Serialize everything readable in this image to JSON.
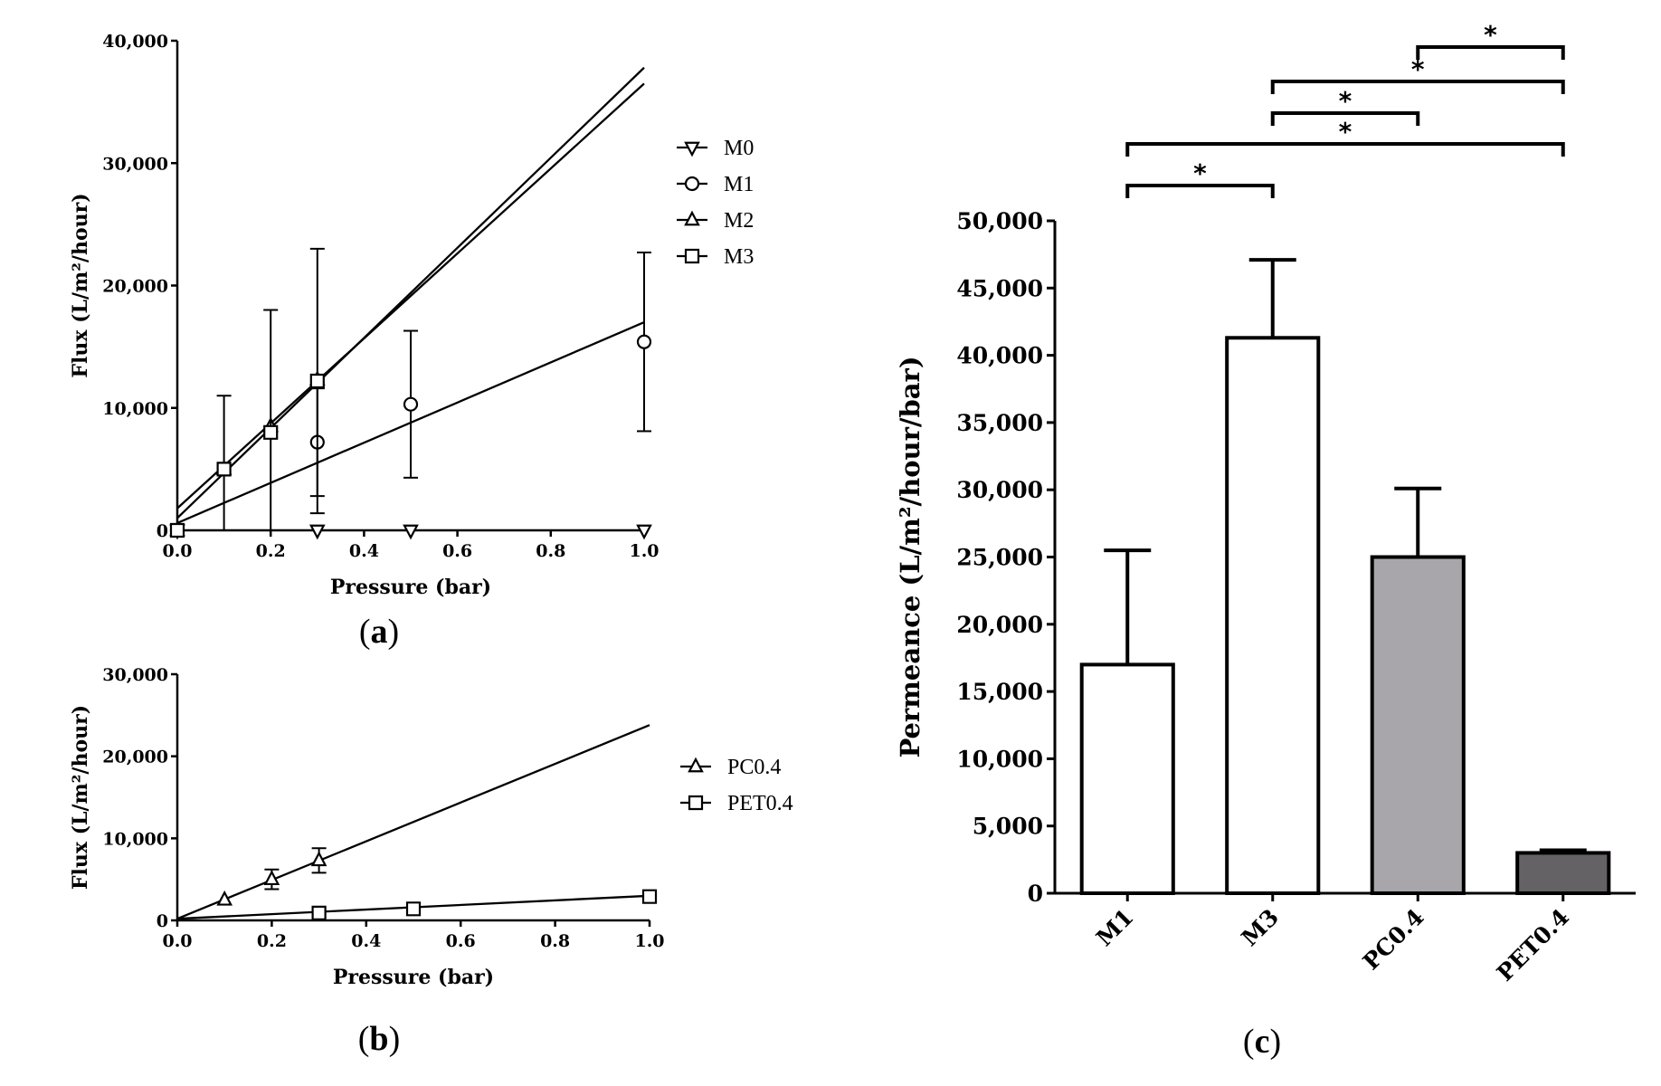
{
  "chart_data": [
    {
      "type": "scatter",
      "panel": "a",
      "panel_label": "a",
      "xlabel": "Pressure (bar)",
      "ylabel": "Flux (L/m²/hour)",
      "xlim": [
        0,
        1.0
      ],
      "ylim": [
        0,
        40000
      ],
      "xticks": [
        "0.0",
        "0.2",
        "0.4",
        "0.6",
        "0.8",
        "1.0"
      ],
      "yticks": [
        "0",
        "10,000",
        "20,000",
        "30,000",
        "40,000"
      ],
      "legend": "right",
      "series": [
        {
          "name": "M0",
          "marker": "triangle-down",
          "x": [
            0,
            0.3,
            0.5,
            1.0
          ],
          "y": [
            0,
            0,
            0,
            0
          ],
          "err": [
            0,
            0,
            0,
            0
          ],
          "fit": [
            0,
            0
          ]
        },
        {
          "name": "M1",
          "marker": "circle",
          "x": [
            0,
            0.3,
            0.5,
            1.0
          ],
          "y": [
            0,
            7200,
            10300,
            15400
          ],
          "err": [
            0,
            4400,
            6000,
            7300
          ],
          "fit": [
            600,
            17000
          ]
        },
        {
          "name": "M2",
          "marker": "triangle-up",
          "x": [
            0,
            0.1,
            0.2,
            0.3
          ],
          "y": [
            0,
            5000,
            8500,
            12300
          ],
          "err": [
            0,
            0,
            0,
            0
          ],
          "fit": [
            1800,
            36500
          ]
        },
        {
          "name": "M3",
          "marker": "square",
          "x": [
            0,
            0.1,
            0.2,
            0.3
          ],
          "y": [
            0,
            5000,
            8000,
            12200
          ],
          "err": [
            0,
            6000,
            10000,
            10800
          ],
          "fit": [
            1000,
            37800
          ]
        }
      ]
    },
    {
      "type": "scatter",
      "panel": "b",
      "panel_label": "b",
      "xlabel": "Pressure (bar)",
      "ylabel": "Flux (L/m²/hour)",
      "xlim": [
        0,
        1.0
      ],
      "ylim": [
        0,
        30000
      ],
      "xticks": [
        "0.0",
        "0.2",
        "0.4",
        "0.6",
        "0.8",
        "1.0"
      ],
      "yticks": [
        "0",
        "10,000",
        "20,000",
        "30,000"
      ],
      "legend": "right",
      "series": [
        {
          "name": "PC0.4",
          "marker": "triangle-up",
          "x": [
            0.1,
            0.2,
            0.3
          ],
          "y": [
            2500,
            5000,
            7300
          ],
          "err": [
            0,
            1200,
            1500
          ],
          "fit": [
            200,
            23800
          ]
        },
        {
          "name": "PET0.4",
          "marker": "square",
          "x": [
            0.3,
            0.5,
            1.0
          ],
          "y": [
            900,
            1400,
            2900
          ],
          "err": [
            0,
            0,
            0
          ],
          "fit": [
            200,
            3000
          ]
        }
      ]
    },
    {
      "type": "bar",
      "panel": "c",
      "panel_label": "c",
      "ylabel": "Permeance (L/m²/hour/bar)",
      "categories": [
        "M1",
        "M3",
        "PC0.4",
        "PET0.4"
      ],
      "values": [
        17000,
        41300,
        25000,
        3000
      ],
      "errors": [
        8500,
        5800,
        5100,
        200
      ],
      "colors": [
        "#ffffff",
        "#ffffff",
        "#a9a6ab",
        "#646264"
      ],
      "ylim": [
        0,
        50000
      ],
      "yticks": [
        "0",
        "5,000",
        "10,000",
        "15,000",
        "20,000",
        "25,000",
        "30,000",
        "35,000",
        "40,000",
        "45,000",
        "50,000"
      ],
      "significance": [
        {
          "from": "M1",
          "to": "M3",
          "label": "*"
        },
        {
          "from": "M1",
          "to": "PET0.4",
          "label": "*"
        },
        {
          "from": "M3",
          "to": "PC0.4",
          "label": "*"
        },
        {
          "from": "M3",
          "to": "PET0.4",
          "label": "*"
        },
        {
          "from": "PC0.4",
          "to": "PET0.4",
          "label": "*"
        }
      ]
    }
  ]
}
